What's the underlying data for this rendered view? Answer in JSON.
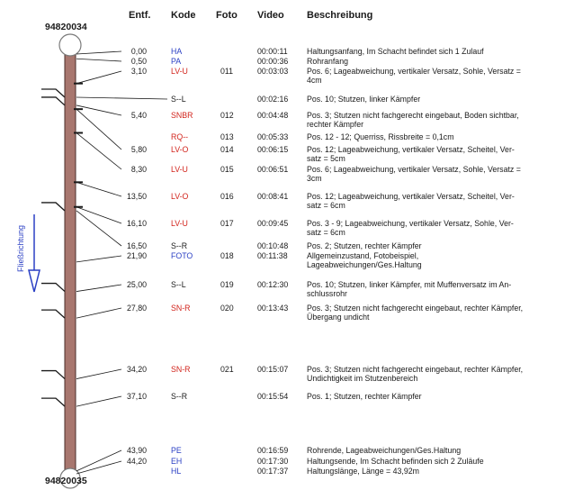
{
  "header": {
    "distance": "Entf.",
    "code": "Kode",
    "photo": "Foto",
    "video": "Video",
    "description": "Beschreibung"
  },
  "manhole_start": "94820034",
  "manhole_end": "94820035",
  "flow_direction_label": "Fließrichtung",
  "colors": {
    "info": "#2a3fc4",
    "defect": "#d2241c",
    "neutral": "#1a1a1a",
    "pipe_fill": "#a8776f",
    "pipe_stroke": "#4a2e2a"
  },
  "rows": [
    {
      "distance": "0,00",
      "code": "HA",
      "color": "#2a3fc4",
      "video": "00:00:11",
      "description": [
        "Haltungsanfang, Im Schacht befindet sich 1 Zulauf"
      ]
    },
    {
      "distance": "0,50",
      "code": "PA",
      "color": "#2a3fc4",
      "video": "00:00:36",
      "description": [
        "Rohranfang"
      ]
    },
    {
      "distance": "3,10",
      "code": "LV-U",
      "color": "#d2241c",
      "photo": "011",
      "video": "00:03:03",
      "description": [
        "Pos. 6; Lageabweichung, vertikaler Versatz, Sohle, Versatz =",
        "4cm"
      ]
    },
    {
      "code": "S--L",
      "color": "#1a1a1a",
      "video": "00:02:16",
      "description": [
        "Pos. 10; Stutzen, linker Kämpfer"
      ]
    },
    {
      "distance": "5,40",
      "code": "SNBR",
      "color": "#d2241c",
      "photo": "012",
      "video": "00:04:48",
      "description": [
        "Pos. 3; Stutzen nicht fachgerecht eingebaut, Boden sichtbar,",
        "rechter Kämpfer"
      ]
    },
    {
      "code": "RQ--",
      "color": "#d2241c",
      "photo": "013",
      "video": "00:05:33",
      "description": [
        "Pos. 12 - 12; Querriss, Rissbreite = 0,1cm"
      ]
    },
    {
      "distance": "5,80",
      "code": "LV-O",
      "color": "#d2241c",
      "photo": "014",
      "video": "00:06:15",
      "description": [
        "Pos. 12; Lageabweichung, vertikaler Versatz, Scheitel, Ver-",
        "satz = 5cm"
      ]
    },
    {
      "distance": "8,30",
      "code": "LV-U",
      "color": "#d2241c",
      "photo": "015",
      "video": "00:06:51",
      "description": [
        "Pos. 6; Lageabweichung, vertikaler Versatz, Sohle, Versatz =",
        "3cm"
      ]
    },
    {
      "distance": "13,50",
      "code": "LV-O",
      "color": "#d2241c",
      "photo": "016",
      "video": "00:08:41",
      "description": [
        "Pos. 12; Lageabweichung, vertikaler Versatz, Scheitel, Ver-",
        "satz = 6cm"
      ]
    },
    {
      "distance": "16,10",
      "code": "LV-U",
      "color": "#d2241c",
      "photo": "017",
      "video": "00:09:45",
      "description": [
        "Pos. 3 - 9; Lageabweichung, vertikaler Versatz, Sohle, Ver-",
        "satz = 6cm"
      ]
    },
    {
      "distance": "16,50",
      "code": "S--R",
      "color": "#1a1a1a",
      "video": "00:10:48",
      "description": [
        "Pos. 2; Stutzen, rechter Kämpfer"
      ]
    },
    {
      "distance": "21,90",
      "code": "FOTO",
      "color": "#2a3fc4",
      "photo": "018",
      "video": "00:11:38",
      "description": [
        "Allgemeinzustand, Fotobeispiel,",
        "Lageabweichungen/Ges.Haltung"
      ]
    },
    {
      "distance": "25,00",
      "code": "S--L",
      "color": "#1a1a1a",
      "photo": "019",
      "video": "00:12:30",
      "description": [
        "Pos. 10; Stutzen, linker Kämpfer, mit Muffenversatz im An-",
        "schlussrohr"
      ]
    },
    {
      "distance": "27,80",
      "code": "SN-R",
      "color": "#d2241c",
      "photo": "020",
      "video": "00:13:43",
      "description": [
        "Pos. 3; Stutzen nicht fachgerecht eingebaut, rechter Kämpfer,",
        "Übergang undicht"
      ]
    },
    {
      "distance": "34,20",
      "code": "SN-R",
      "color": "#d2241c",
      "photo": "021",
      "video": "00:15:07",
      "description": [
        "Pos. 3; Stutzen nicht fachgerecht eingebaut, rechter Kämpfer,",
        "Undichtigkeit im Stutzenbereich"
      ]
    },
    {
      "distance": "37,10",
      "code": "S--R",
      "color": "#1a1a1a",
      "video": "00:15:54",
      "description": [
        "Pos. 1; Stutzen, rechter Kämpfer"
      ]
    },
    {
      "distance": "43,90",
      "code": "PE",
      "color": "#2a3fc4",
      "video": "00:16:59",
      "description": [
        "Rohrende, Lageabweichungen/Ges.Haltung"
      ]
    },
    {
      "distance": "44,20",
      "code": "EH",
      "color": "#2a3fc4",
      "video": "00:17:30",
      "description": [
        "Haltungsende, Im Schacht befinden sich 2 Zuläufe"
      ]
    },
    {
      "code": "HL",
      "color": "#2a3fc4",
      "video": "00:17:37",
      "description": [
        "Haltungslänge, Länge = 43,92m"
      ]
    }
  ]
}
